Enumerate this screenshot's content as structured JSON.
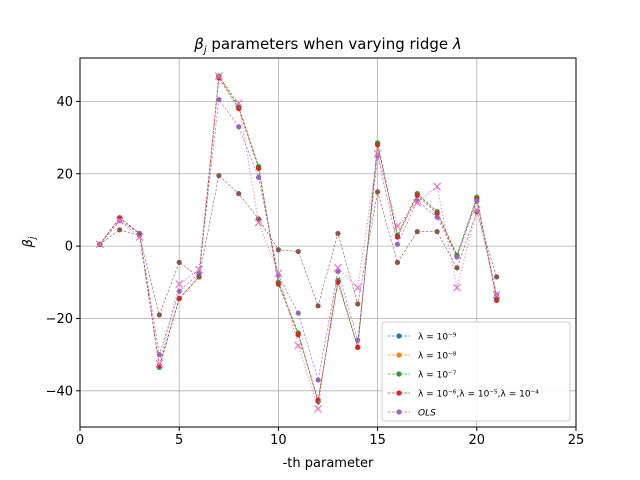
{
  "chart_data": {
    "type": "line",
    "title_parts": {
      "pre": "β",
      "sub": "j",
      "post": " parameters when varying ridge ",
      "lam": "λ"
    },
    "xlabel": "-th parameter",
    "ylabel_parts": {
      "main": "β",
      "sub": "j"
    },
    "xlim": [
      0,
      25
    ],
    "ylim": [
      -50,
      52
    ],
    "xticks": [
      0,
      5,
      10,
      15,
      20,
      25
    ],
    "xtick_labels": [
      "0",
      "5",
      "10",
      "15",
      "20",
      "25"
    ],
    "yticks": [
      -40,
      -20,
      0,
      20,
      40
    ],
    "ytick_labels": [
      "−40",
      "−20",
      "0",
      "20",
      "40"
    ],
    "grid": true,
    "legend_position": "lower-right",
    "x": [
      1,
      2,
      3,
      4,
      5,
      6,
      7,
      8,
      9,
      10,
      11,
      12,
      13,
      14,
      15,
      16,
      17,
      18,
      19,
      20,
      21
    ],
    "series": [
      {
        "legend_label": "λ = 10⁻⁹",
        "color": "#1f77b4",
        "marker": "o",
        "linestyle": "dashed",
        "values": [
          0.5,
          7.8,
          3.5,
          -33.5,
          -14.5,
          -8.5,
          47.0,
          38.5,
          22.0,
          -10.0,
          -24.0,
          -43.0,
          -9.5,
          -28.0,
          28.5,
          3.0,
          14.5,
          9.5,
          -2.5,
          13.5,
          -14.5
        ]
      },
      {
        "legend_label": "λ = 10⁻⁸",
        "color": "#ff7f0e",
        "marker": "o",
        "linestyle": "dashed",
        "values": [
          0.5,
          7.8,
          3.5,
          -33.5,
          -14.5,
          -8.5,
          47.0,
          38.5,
          22.0,
          -10.0,
          -24.0,
          -43.0,
          -9.5,
          -28.0,
          28.5,
          3.0,
          14.5,
          9.5,
          -2.5,
          13.5,
          -14.5
        ]
      },
      {
        "legend_label": "λ = 10⁻⁷",
        "color": "#2ca02c",
        "marker": "o",
        "linestyle": "dashed",
        "values": [
          0.5,
          7.8,
          3.5,
          -33.5,
          -14.5,
          -8.5,
          47.0,
          38.5,
          22.0,
          -10.0,
          -24.0,
          -43.0,
          -9.5,
          -28.0,
          28.5,
          3.0,
          14.5,
          9.5,
          -2.5,
          13.5,
          -14.5
        ]
      },
      {
        "legend_label": "λ = 10⁻⁶,λ = 10⁻⁵,λ = 10⁻⁴",
        "color": "#d62728",
        "marker": "o",
        "linestyle": "dashed",
        "values": [
          0.5,
          7.8,
          3.5,
          -33.0,
          -14.5,
          -8.5,
          46.5,
          38.0,
          21.5,
          -10.5,
          -24.5,
          -42.5,
          -10.0,
          -28.0,
          28.0,
          2.5,
          14.0,
          9.0,
          -3.0,
          13.0,
          -15.0
        ]
      },
      {
        "legend_label": "OLS",
        "color": "#9467bd",
        "marker": "o",
        "linestyle": "dashed",
        "values": [
          0.5,
          7.0,
          3.5,
          -30.0,
          -12.5,
          -7.5,
          40.5,
          33.0,
          19.0,
          -8.0,
          -18.5,
          -37.0,
          -7.0,
          -26.0,
          25.0,
          0.5,
          12.5,
          8.0,
          -3.0,
          12.5,
          -13.5
        ]
      },
      {
        "legend_label": "",
        "color": "#8c564b",
        "marker": "o",
        "linestyle": "dashed",
        "values": [
          0.5,
          4.5,
          3.0,
          -19.0,
          -4.5,
          -8.5,
          19.5,
          14.5,
          7.5,
          -1.0,
          -1.5,
          -16.5,
          3.5,
          -16.0,
          15.0,
          -4.5,
          4.0,
          4.0,
          -6.0,
          9.5,
          -8.5
        ]
      },
      {
        "legend_label": "",
        "color": "#e377c2",
        "marker": "x",
        "linestyle": "dotted",
        "values": [
          0.5,
          7.0,
          2.5,
          -32.5,
          -10.5,
          -6.5,
          47.0,
          39.5,
          6.5,
          -7.5,
          -27.5,
          -45.0,
          -6.0,
          -11.5,
          25.5,
          5.5,
          12.0,
          16.5,
          -11.5,
          10.0,
          -13.5
        ]
      }
    ]
  }
}
